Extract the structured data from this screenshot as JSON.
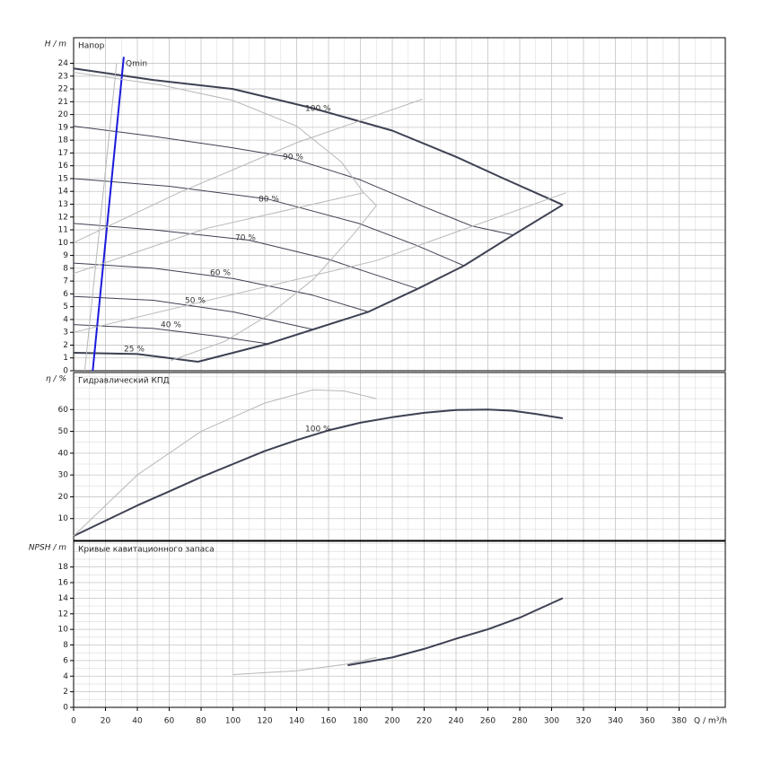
{
  "chart_data": [
    {
      "type": "line",
      "title": "Напор",
      "ylabel": "H / m",
      "xlim": [
        0,
        409
      ],
      "ylim": [
        0,
        26
      ],
      "yticks": [
        0,
        1,
        2,
        3,
        4,
        5,
        6,
        7,
        8,
        9,
        10,
        11,
        12,
        13,
        14,
        15,
        16,
        17,
        18,
        19,
        20,
        21,
        22,
        23,
        24
      ],
      "grid": true,
      "minor_grid": false,
      "series": [
        {
          "name": "100 %",
          "color": "#3d4152",
          "weight": "bold",
          "x": [
            0,
            50,
            100,
            150,
            200,
            240,
            270,
            307
          ],
          "values": [
            23.6,
            22.7,
            22.0,
            20.5,
            18.75,
            16.7,
            15.0,
            12.95
          ]
        },
        {
          "name": "90 %",
          "color": "#3d4152",
          "weight": "thin",
          "x": [
            0,
            50,
            100,
            134,
            180,
            220,
            250,
            276
          ],
          "values": [
            19.1,
            18.3,
            17.4,
            16.7,
            14.9,
            12.8,
            11.3,
            10.6
          ]
        },
        {
          "name": "80 %",
          "color": "#3d4152",
          "weight": "thin",
          "x": [
            0,
            60,
            122,
            179,
            215,
            245
          ],
          "values": [
            15.0,
            14.4,
            13.4,
            11.5,
            9.8,
            8.2
          ]
        },
        {
          "name": "70 %",
          "color": "#3d4152",
          "weight": "thin",
          "x": [
            0,
            50,
            110,
            160,
            216
          ],
          "values": [
            11.5,
            11.0,
            10.2,
            8.7,
            6.4
          ]
        },
        {
          "name": "60 %",
          "color": "#3d4152",
          "weight": "thin",
          "x": [
            0,
            50,
            100,
            150,
            185
          ],
          "values": [
            8.4,
            8.0,
            7.2,
            5.9,
            4.6
          ]
        },
        {
          "name": "50 %",
          "color": "#3d4152",
          "weight": "thin",
          "x": [
            0,
            50,
            100,
            151
          ],
          "values": [
            5.8,
            5.5,
            4.6,
            3.2
          ]
        },
        {
          "name": "40 %",
          "color": "#3d4152",
          "weight": "thin",
          "x": [
            0,
            50,
            90,
            122
          ],
          "values": [
            3.6,
            3.3,
            2.7,
            2.1
          ]
        },
        {
          "name": "25 %",
          "color": "#3d4152",
          "weight": "bold",
          "x": [
            0,
            40,
            78
          ],
          "values": [
            1.4,
            1.3,
            0.7
          ]
        },
        {
          "color": "#3d4152",
          "weight": "bold",
          "x": [
            78,
            122,
            185,
            216,
            245,
            276,
            307
          ],
          "values": [
            0.7,
            2.1,
            4.6,
            6.4,
            8.2,
            10.6,
            12.95
          ]
        },
        {
          "name": "Qmin",
          "color": "#1a1adb",
          "weight": "bold",
          "x": [
            12,
            31.5
          ],
          "values": [
            0,
            24.5
          ]
        },
        {
          "color": "#b8b8b8",
          "weight": "thin",
          "x": [
            0,
            55,
            100,
            140,
            168,
            182,
            190,
            176,
            151,
            123,
            95,
            61
          ],
          "values": [
            23.3,
            22.3,
            21.1,
            19.1,
            16.3,
            13.9,
            12.9,
            10.7,
            7.2,
            4.4,
            2.3,
            0.8
          ]
        },
        {
          "color": "#b8b8b8",
          "weight": "thin",
          "x": [
            0,
            66,
            140,
            219
          ],
          "values": [
            10.0,
            13.9,
            17.8,
            21.2
          ]
        },
        {
          "color": "#b8b8b8",
          "weight": "thin",
          "x": [
            0,
            95,
            190,
            309
          ],
          "values": [
            3.0,
            5.8,
            8.6,
            13.9
          ]
        },
        {
          "color": "#b8b8b8",
          "weight": "thin",
          "x": [
            7,
            27
          ],
          "values": [
            0,
            24
          ]
        },
        {
          "color": "#b8b8b8",
          "weight": "thin",
          "x": [
            0,
            83,
            182
          ],
          "values": [
            7.6,
            11.1,
            13.9
          ]
        }
      ]
    },
    {
      "type": "line",
      "title": "Гидравлический КПД",
      "ylabel": "η / %",
      "xlim": [
        0,
        409
      ],
      "ylim": [
        0,
        77
      ],
      "yticks": [
        10,
        20,
        30,
        40,
        50,
        60
      ],
      "grid": true,
      "minor_grid": true,
      "series": [
        {
          "name": "100 %",
          "color": "#3d4152",
          "weight": "bold",
          "x": [
            0,
            20,
            40,
            60,
            80,
            100,
            120,
            140,
            160,
            180,
            200,
            220,
            240,
            260,
            275,
            290,
            307
          ],
          "values": [
            2,
            9,
            16,
            22.5,
            29,
            35,
            41,
            46,
            50.5,
            54,
            56.5,
            58.5,
            59.8,
            60,
            59.5,
            58,
            56
          ]
        },
        {
          "color": "#b8b8b8",
          "weight": "thin",
          "x": [
            0,
            40,
            80,
            120,
            150,
            170,
            190
          ],
          "values": [
            2,
            30,
            50,
            63,
            69,
            68.5,
            65
          ]
        }
      ]
    },
    {
      "type": "line",
      "title": "Кривые кавитационного запаса",
      "ylabel": "NPSH / m",
      "xlabel": "Q / m³/h",
      "xlim": [
        0,
        409
      ],
      "ylim": [
        0,
        21.3
      ],
      "xticks": [
        0,
        20,
        40,
        60,
        80,
        100,
        120,
        140,
        160,
        180,
        200,
        220,
        240,
        260,
        280,
        300,
        320,
        340,
        360,
        380
      ],
      "yticks": [
        0,
        2,
        4,
        6,
        8,
        10,
        12,
        14,
        16,
        18
      ],
      "grid": true,
      "minor_grid": true,
      "series": [
        {
          "color": "#3d4152",
          "weight": "bold",
          "x": [
            172,
            200,
            220,
            240,
            260,
            280,
            307
          ],
          "values": [
            5.4,
            6.4,
            7.5,
            8.8,
            10.0,
            11.5,
            14.0
          ]
        },
        {
          "color": "#b8b8b8",
          "weight": "thin",
          "x": [
            100,
            140,
            170,
            190
          ],
          "values": [
            4.2,
            4.7,
            5.5,
            6.4
          ]
        }
      ]
    }
  ]
}
